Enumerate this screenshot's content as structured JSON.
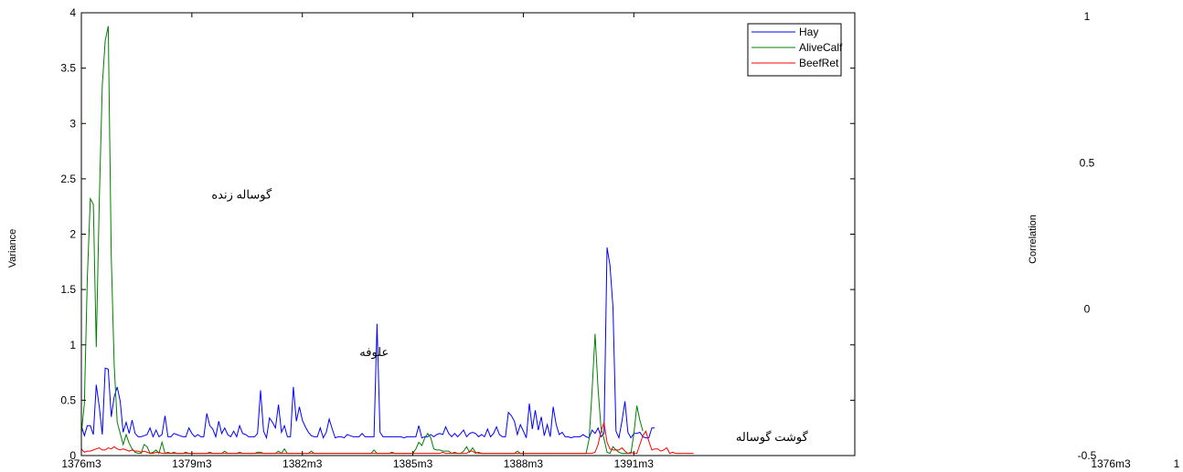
{
  "chart_data": [
    {
      "type": "line",
      "title": "",
      "xlabel": "",
      "ylabel": "Variance",
      "xlim": [
        0,
        70
      ],
      "ylim": [
        0,
        4
      ],
      "yticks": [
        "0",
        "0.5",
        "1",
        "1.5",
        "2",
        "2.5",
        "3",
        "3.5",
        "4"
      ],
      "ytick_values": [
        0,
        0.5,
        1,
        1.5,
        2,
        2.5,
        3,
        3.5,
        4
      ],
      "xticks": [
        "1376m3",
        "1379m3",
        "1382m3",
        "1385m3",
        "1388m3",
        "1391m3"
      ],
      "xtick_values": [
        0,
        10,
        20,
        30,
        40,
        50
      ],
      "grid": false,
      "legend_position": "top-right",
      "annotations": [
        {
          "text": "گوساله زنده",
          "x": 14.5,
          "y": 2.32
        },
        {
          "text": "علوفه",
          "x": 26.5,
          "y": 0.9
        },
        {
          "text": "گوشت گوساله",
          "x": 62.5,
          "y": 0.13
        }
      ],
      "series": [
        {
          "name": "Hay",
          "color": "#0000ff",
          "values": [
            0.27,
            0.18,
            0.27,
            0.27,
            0.19,
            0.64,
            0.44,
            0.19,
            0.79,
            0.78,
            0.35,
            0.53,
            0.62,
            0.49,
            0.21,
            0.3,
            0.2,
            0.32,
            0.2,
            0.17,
            0.17,
            0.18,
            0.19,
            0.25,
            0.17,
            0.23,
            0.17,
            0.19,
            0.36,
            0.17,
            0.17,
            0.2,
            0.19,
            0.18,
            0.17,
            0.17,
            0.25,
            0.2,
            0.17,
            0.19,
            0.17,
            0.17,
            0.38,
            0.27,
            0.24,
            0.17,
            0.31,
            0.2,
            0.25,
            0.19,
            0.17,
            0.22,
            0.17,
            0.27,
            0.2,
            0.19,
            0.17,
            0.17,
            0.17,
            0.2,
            0.59,
            0.22,
            0.16,
            0.34,
            0.3,
            0.25,
            0.46,
            0.21,
            0.27,
            0.17,
            0.17,
            0.62,
            0.31,
            0.44,
            0.32,
            0.26,
            0.21,
            0.18,
            0.17,
            0.17,
            0.25,
            0.16,
            0.21,
            0.33,
            0.24,
            0.16,
            0.17,
            0.17,
            0.16,
            0.19,
            0.18,
            0.17,
            0.17,
            0.17,
            0.2,
            0.17,
            0.17,
            0.17,
            0.17,
            1.19,
            0.21,
            0.17,
            0.17,
            0.17,
            0.17,
            0.17,
            0.17,
            0.17,
            0.16,
            0.17,
            0.17,
            0.17,
            0.17,
            0.27,
            0.16,
            0.17,
            0.17,
            0.19,
            0.17,
            0.19,
            0.2,
            0.19,
            0.26,
            0.2,
            0.17,
            0.2,
            0.17,
            0.2,
            0.23,
            0.17,
            0.2,
            0.21,
            0.2,
            0.17,
            0.19,
            0.17,
            0.24,
            0.17,
            0.2,
            0.26,
            0.19,
            0.17,
            0.17,
            0.39,
            0.36,
            0.31,
            0.19,
            0.28,
            0.22,
            0.16,
            0.47,
            0.24,
            0.41,
            0.23,
            0.35,
            0.18,
            0.28,
            0.17,
            0.44,
            0.28,
            0.19,
            0.21,
            0.17,
            0.17,
            0.16,
            0.17,
            0.17,
            0.17,
            0.19,
            0.17,
            0.16,
            0.23,
            0.2,
            0.25,
            0.17,
            0.2,
            1.88,
            1.72,
            1.34,
            0.22,
            0.16,
            0.31,
            0.49,
            0.21,
            0.16,
            0.2,
            0.2,
            0.21,
            0.17,
            0.16,
            0.16,
            0.25,
            0.25
          ],
          "x_start": 0,
          "x_step": 0.2703
        },
        {
          "name": "AliveCalf",
          "color": "#008000",
          "values": [
            0.2,
            0.47,
            1.6,
            2.32,
            2.27,
            0.98,
            2.3,
            3.35,
            3.75,
            3.88,
            1.8,
            0.82,
            0.3,
            0.2,
            0.1,
            0.19,
            0.11,
            0.06,
            0.03,
            0.02,
            0.02,
            0.1,
            0.08,
            0.02,
            0.03,
            0.05,
            0.02,
            0.12,
            0.02,
            0.03,
            0.02,
            0.03,
            0.02,
            0.02,
            0.02,
            0.03,
            0.02,
            0.02,
            0.02,
            0.02,
            0.02,
            0.02,
            0.02,
            0.03,
            0.02,
            0.02,
            0.02,
            0.02,
            0.04,
            0.02,
            0.02,
            0.02,
            0.02,
            0.02,
            0.02,
            0.02,
            0.02,
            0.02,
            0.02,
            0.03,
            0.03,
            0.02,
            0.02,
            0.02,
            0.02,
            0.02,
            0.04,
            0.02,
            0.06,
            0.02,
            0.02,
            0.02,
            0.02,
            0.02,
            0.02,
            0.02,
            0.02,
            0.04,
            0.02,
            0.02,
            0.02,
            0.02,
            0.02,
            0.02,
            0.02,
            0.02,
            0.02,
            0.02,
            0.02,
            0.02,
            0.02,
            0.02,
            0.02,
            0.02,
            0.02,
            0.02,
            0.02,
            0.02,
            0.05,
            0.02,
            0.02,
            0.02,
            0.02,
            0.02,
            0.03,
            0.02,
            0.02,
            0.02,
            0.02,
            0.02,
            0.02,
            0.02,
            0.06,
            0.12,
            0.09,
            0.16,
            0.2,
            0.16,
            0.06,
            0.05,
            0.05,
            0.04,
            0.04,
            0.04,
            0.02,
            0.02,
            0.02,
            0.02,
            0.04,
            0.08,
            0.03,
            0.07,
            0.03,
            0.02,
            0.02,
            0.02,
            0.02,
            0.02,
            0.02,
            0.02,
            0.02,
            0.02,
            0.02,
            0.02,
            0.02,
            0.02,
            0.04,
            0.02,
            0.02,
            0.02,
            0.02,
            0.02,
            0.02,
            0.02,
            0.02,
            0.02,
            0.02,
            0.02,
            0.02,
            0.02,
            0.02,
            0.02,
            0.02,
            0.02,
            0.02,
            0.02,
            0.02,
            0.02,
            0.02,
            0.02,
            0.15,
            0.58,
            1.1,
            0.6,
            0.25,
            0.15,
            0.03,
            0.02,
            0.08,
            0.05,
            0.03,
            0.02,
            0.02,
            0.02,
            0.02,
            0.2,
            0.45,
            0.32,
            0.22
          ],
          "x_start": 0,
          "x_step": 0.2703
        },
        {
          "name": "BeefRet",
          "color": "#ff0000",
          "values": [
            0.06,
            0.03,
            0.04,
            0.04,
            0.05,
            0.06,
            0.07,
            0.05,
            0.05,
            0.07,
            0.06,
            0.08,
            0.06,
            0.05,
            0.06,
            0.05,
            0.04,
            0.05,
            0.04,
            0.04,
            0.03,
            0.04,
            0.03,
            0.02,
            0.02,
            0.03,
            0.03,
            0.02,
            0.02,
            0.02,
            0.02,
            0.02,
            0.02,
            0.02,
            0.02,
            0.02,
            0.02,
            0.02,
            0.02,
            0.02,
            0.02,
            0.02,
            0.02,
            0.02,
            0.02,
            0.02,
            0.02,
            0.02,
            0.02,
            0.02,
            0.02,
            0.02,
            0.02,
            0.03,
            0.02,
            0.02,
            0.02,
            0.02,
            0.02,
            0.02,
            0.02,
            0.02,
            0.02,
            0.02,
            0.02,
            0.02,
            0.02,
            0.02,
            0.02,
            0.02,
            0.02,
            0.02,
            0.02,
            0.02,
            0.02,
            0.02,
            0.02,
            0.02,
            0.02,
            0.02,
            0.02,
            0.02,
            0.02,
            0.02,
            0.02,
            0.02,
            0.02,
            0.02,
            0.02,
            0.02,
            0.02,
            0.02,
            0.02,
            0.02,
            0.02,
            0.02,
            0.02,
            0.02,
            0.02,
            0.02,
            0.02,
            0.02,
            0.02,
            0.02,
            0.02,
            0.02,
            0.02,
            0.02,
            0.02,
            0.02,
            0.02,
            0.02,
            0.02,
            0.02,
            0.02,
            0.02,
            0.02,
            0.02,
            0.02,
            0.02,
            0.02,
            0.03,
            0.02,
            0.02,
            0.02,
            0.03,
            0.02,
            0.02,
            0.02,
            0.02,
            0.04,
            0.04,
            0.02,
            0.03,
            0.02,
            0.02,
            0.02,
            0.02,
            0.02,
            0.02,
            0.02,
            0.02,
            0.02,
            0.02,
            0.02,
            0.02,
            0.02,
            0.02,
            0.02,
            0.02,
            0.02,
            0.02,
            0.02,
            0.02,
            0.02,
            0.02,
            0.02,
            0.02,
            0.02,
            0.02,
            0.02,
            0.02,
            0.02,
            0.02,
            0.02,
            0.02,
            0.02,
            0.02,
            0.02,
            0.02,
            0.02,
            0.02,
            0.03,
            0.1,
            0.22,
            0.3,
            0.12,
            0.06,
            0.05,
            0.05,
            0.05,
            0.07,
            0.04,
            0.02,
            0.03,
            0.02,
            0.02,
            0.1,
            0.18,
            0.22,
            0.13,
            0.05,
            0.06,
            0.06,
            0.04,
            0.05,
            0.07,
            0.02,
            0.03,
            0.02,
            0.02,
            0.02,
            0.02,
            0.02,
            0.02,
            0.02
          ],
          "x_start": 0,
          "x_step": 0.2703
        }
      ]
    },
    {
      "type": "line",
      "title": "",
      "xlabel": "",
      "ylabel": "Correlation",
      "ylim": [
        -0.5,
        1
      ],
      "yticks": [
        "-0.5",
        "0",
        "0.5",
        "1"
      ],
      "ytick_values": [
        -0.5,
        0,
        0.5,
        1
      ],
      "xticks": [
        "1376m3",
        "1"
      ],
      "grid": false,
      "series": []
    }
  ]
}
